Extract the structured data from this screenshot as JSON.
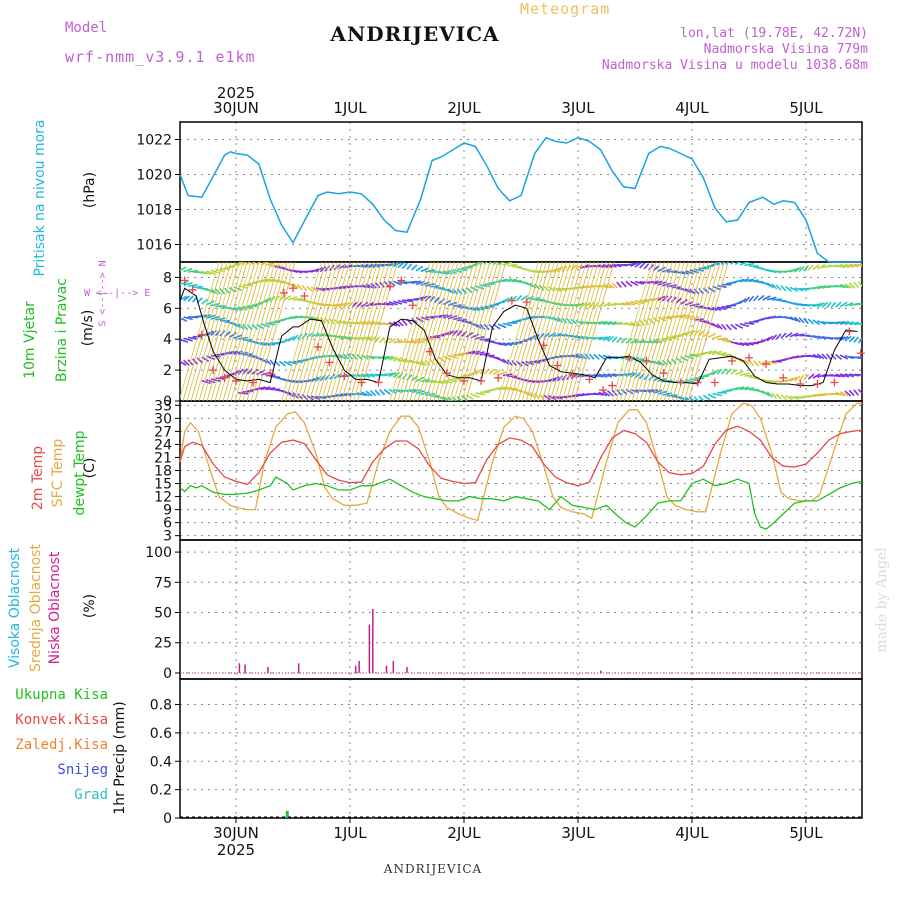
{
  "header": {
    "model_label": "Model",
    "model_name": "wrf-nmm_v3.9.1 e1km",
    "title": "ANDRIJEVICA",
    "kind": "Meteogram",
    "coords": "lon,lat (19.78E, 42.72N)",
    "elevation": "Nadmorska Visina 779m",
    "model_elevation": "Nadmorska Visina u modelu 1038.68m"
  },
  "footer": {
    "station": "ANDRIJEVICA",
    "credit": "made by Angel"
  },
  "x_axis": {
    "year": "2025",
    "days": [
      "30JUN",
      "1JUL",
      "2JUL",
      "3JUL",
      "4JUL",
      "5JUL"
    ]
  },
  "labels": {
    "pressure": {
      "name": "Pritisak na nivou mora",
      "unit": "(hPa)"
    },
    "wind": {
      "name1": "10m Vjetar",
      "name2": "Brzina i Pravac",
      "unit": "(m/s)",
      "compass_we": "W <--|--> E",
      "compass_ns": "S <--|--> N"
    },
    "temp": {
      "t2m": "2m Temp",
      "sfc": "SFC Temp",
      "dew": "dewpt Temp",
      "unit": "(C)"
    },
    "cloud": {
      "high": "Visoka Oblacnost",
      "mid": "Srednja Oblacnost",
      "low": "Niska Oblacnost",
      "unit": "(%)"
    },
    "precip": {
      "total": "Ukupna Kisa",
      "conv": "Konvek.Kisa",
      "frozen": "Zaledj.Kisa",
      "snow": "Snijeg",
      "hail": "Grad",
      "unit": "1hr Precip (mm)"
    }
  },
  "colors": {
    "pressure": "#1aa3e0",
    "t2m": "#e84848",
    "sfc": "#e8a840",
    "dew": "#20c020",
    "cloud_low": "#c0208a",
    "wind_obs": "#e84848",
    "wind_line": "#000000",
    "precip": "#20c040",
    "grid": "#888888",
    "label_magenta": "#d02090",
    "label_orange": "#e8a840",
    "label_cyan": "#20b8e0",
    "label_green": "#20c020",
    "label_red": "#e84848",
    "label_orange2": "#f08030",
    "label_blue": "#3a50e0",
    "label_teal": "#30c0c0"
  },
  "chart_data": [
    {
      "type": "line",
      "name": "pressure",
      "x_unit": "days since 30JUN 00h",
      "yticks": [
        1016,
        1018,
        1020,
        1022
      ],
      "ylim": [
        1015.0,
        1023.0
      ],
      "series": [
        {
          "name": "Pritisak na nivou mora",
          "x": [
            -0.5,
            -0.42,
            -0.3,
            -0.2,
            -0.1,
            -0.05,
            0.0,
            0.1,
            0.2,
            0.3,
            0.4,
            0.5,
            0.62,
            0.72,
            0.8,
            0.9,
            1.0,
            1.1,
            1.2,
            1.3,
            1.4,
            1.5,
            1.62,
            1.72,
            1.8,
            1.9,
            2.0,
            2.1,
            2.2,
            2.3,
            2.4,
            2.5,
            2.62,
            2.72,
            2.8,
            2.9,
            3.0,
            3.1,
            3.2,
            3.3,
            3.4,
            3.5,
            3.62,
            3.72,
            3.8,
            3.9,
            4.0,
            4.1,
            4.2,
            4.3,
            4.4,
            4.5,
            4.62,
            4.72,
            4.8,
            4.9,
            5.0,
            5.1,
            5.2,
            5.3,
            5.4,
            5.5
          ],
          "values": [
            1020.0,
            1018.8,
            1018.7,
            1019.9,
            1021.1,
            1021.3,
            1021.2,
            1021.1,
            1020.6,
            1018.6,
            1017.1,
            1016.1,
            1017.6,
            1018.8,
            1019.0,
            1018.9,
            1019.0,
            1018.9,
            1018.3,
            1017.4,
            1016.8,
            1016.7,
            1018.6,
            1020.8,
            1021.0,
            1021.4,
            1021.8,
            1021.6,
            1020.5,
            1019.2,
            1018.5,
            1018.8,
            1021.2,
            1022.1,
            1021.9,
            1021.8,
            1022.1,
            1021.9,
            1021.4,
            1020.2,
            1019.3,
            1019.2,
            1021.2,
            1021.6,
            1021.5,
            1021.2,
            1020.9,
            1019.8,
            1018.1,
            1017.3,
            1017.4,
            1018.4,
            1018.7,
            1018.3,
            1018.5,
            1018.4,
            1017.4,
            1015.5,
            1015.0,
            1014.5,
            1014.2,
            1014.0
          ]
        }
      ]
    },
    {
      "type": "scatter",
      "name": "wind",
      "yticks": [
        0,
        2,
        4,
        6,
        8
      ],
      "ylim": [
        0,
        9
      ],
      "series": [
        {
          "name": "speed_line",
          "x": [
            -0.5,
            -0.45,
            -0.35,
            -0.28,
            -0.2,
            -0.1,
            0.0,
            0.1,
            0.2,
            0.3,
            0.4,
            0.5,
            0.55,
            0.65,
            0.75,
            0.85,
            0.95,
            1.05,
            1.15,
            1.25,
            1.35,
            1.45,
            1.55,
            1.65,
            1.75,
            1.85,
            1.95,
            2.05,
            2.15,
            2.25,
            2.35,
            2.45,
            2.55,
            2.65,
            2.75,
            2.85,
            2.95,
            3.05,
            3.15,
            3.25,
            3.35,
            3.45,
            3.55,
            3.65,
            3.75,
            3.85,
            3.95,
            4.05,
            4.15,
            4.25,
            4.35,
            4.45,
            4.55,
            4.65,
            4.75,
            4.85,
            4.95,
            5.05,
            5.15,
            5.25,
            5.35,
            5.45
          ],
          "values": [
            6.5,
            7.3,
            6.8,
            5.0,
            3.2,
            2.0,
            1.4,
            1.3,
            1.4,
            1.2,
            4.2,
            4.8,
            4.8,
            5.3,
            5.2,
            3.4,
            2.0,
            1.4,
            1.4,
            1.2,
            4.8,
            5.3,
            5.2,
            4.6,
            2.7,
            1.7,
            1.5,
            1.5,
            1.3,
            4.8,
            5.8,
            6.2,
            6.0,
            4.0,
            2.3,
            1.9,
            1.8,
            1.7,
            1.5,
            2.8,
            2.8,
            2.9,
            2.5,
            1.7,
            1.3,
            1.2,
            1.2,
            1.1,
            2.7,
            2.8,
            2.9,
            2.6,
            1.6,
            1.2,
            1.1,
            1.1,
            1.0,
            1.0,
            1.2,
            3.3,
            4.6,
            4.5
          ]
        },
        {
          "name": "obs_marks",
          "x": [
            -0.45,
            -0.38,
            -0.3,
            -0.2,
            -0.1,
            0.0,
            0.15,
            0.3,
            0.42,
            0.5,
            0.6,
            0.72,
            0.82,
            0.95,
            1.1,
            1.25,
            1.35,
            1.45,
            1.55,
            1.7,
            1.85,
            2.0,
            2.15,
            2.3,
            2.42,
            2.55,
            2.7,
            2.82,
            2.95,
            3.1,
            3.22,
            3.3,
            3.45,
            3.6,
            3.75,
            3.9,
            4.05,
            4.2,
            4.35,
            4.5,
            4.65,
            4.8,
            4.95,
            5.1,
            5.25,
            5.38,
            5.48
          ],
          "values": [
            7.8,
            7.2,
            4.3,
            2.0,
            1.5,
            1.3,
            1.2,
            1.8,
            7.0,
            7.3,
            6.8,
            3.5,
            2.5,
            1.6,
            1.2,
            1.2,
            7.4,
            7.8,
            6.2,
            3.2,
            1.8,
            1.3,
            1.3,
            1.5,
            6.5,
            6.4,
            3.6,
            2.3,
            1.7,
            1.4,
            0.7,
            1.0,
            2.8,
            2.6,
            1.8,
            1.2,
            1.2,
            1.2,
            2.6,
            2.8,
            2.4,
            1.5,
            1.1,
            1.1,
            1.2,
            4.5,
            3.1
          ]
        }
      ]
    },
    {
      "type": "line",
      "name": "temperature",
      "yticks": [
        3,
        6,
        9,
        12,
        15,
        18,
        21,
        24,
        27,
        30,
        33
      ],
      "ylim": [
        2,
        34
      ],
      "series": [
        {
          "name": "2m Temp",
          "x": [
            -0.5,
            -0.45,
            -0.38,
            -0.3,
            -0.2,
            -0.1,
            0.0,
            0.1,
            0.2,
            0.3,
            0.4,
            0.5,
            0.6,
            0.7,
            0.8,
            0.9,
            1.0,
            1.1,
            1.2,
            1.3,
            1.4,
            1.5,
            1.6,
            1.7,
            1.8,
            1.9,
            2.0,
            2.1,
            2.2,
            2.3,
            2.4,
            2.5,
            2.6,
            2.7,
            2.8,
            2.9,
            3.0,
            3.1,
            3.2,
            3.3,
            3.4,
            3.5,
            3.6,
            3.7,
            3.8,
            3.9,
            4.0,
            4.1,
            4.2,
            4.3,
            4.4,
            4.5,
            4.6,
            4.7,
            4.8,
            4.9,
            5.0,
            5.1,
            5.2,
            5.3,
            5.4,
            5.5
          ],
          "values": [
            20.0,
            23.5,
            24.5,
            23.8,
            19.5,
            16.5,
            15.5,
            14.8,
            17.5,
            22.0,
            24.5,
            25.0,
            24.2,
            20.5,
            17.0,
            15.8,
            15.2,
            15.3,
            20.0,
            23.0,
            24.8,
            24.8,
            23.0,
            19.0,
            16.2,
            15.5,
            15.0,
            15.2,
            20.5,
            24.0,
            25.5,
            25.0,
            23.5,
            19.5,
            16.5,
            15.2,
            14.5,
            15.3,
            21.0,
            25.5,
            27.2,
            26.5,
            24.5,
            20.0,
            17.5,
            17.0,
            17.3,
            19.0,
            24.0,
            27.3,
            28.2,
            27.0,
            25.0,
            21.0,
            19.0,
            18.8,
            19.5,
            22.0,
            25.0,
            26.5,
            27.0,
            27.3
          ]
        },
        {
          "name": "SFC Temp",
          "x": [
            -0.5,
            -0.45,
            -0.4,
            -0.33,
            -0.25,
            -0.15,
            -0.05,
            0.0,
            0.1,
            0.17,
            0.25,
            0.35,
            0.45,
            0.52,
            0.6,
            0.7,
            0.78,
            0.85,
            0.95,
            1.05,
            1.15,
            1.25,
            1.35,
            1.45,
            1.52,
            1.6,
            1.7,
            1.78,
            1.85,
            1.95,
            2.05,
            2.12,
            2.25,
            2.35,
            2.45,
            2.52,
            2.6,
            2.7,
            2.78,
            2.85,
            2.95,
            3.05,
            3.12,
            3.25,
            3.35,
            3.45,
            3.52,
            3.6,
            3.7,
            3.78,
            3.85,
            3.95,
            4.05,
            4.12,
            4.25,
            4.35,
            4.45,
            4.52,
            4.6,
            4.7,
            4.78,
            4.85,
            4.95,
            5.05,
            5.12,
            5.25,
            5.35,
            5.45,
            5.5
          ],
          "values": [
            20.0,
            27.0,
            29.0,
            27.0,
            20.0,
            12.0,
            10.0,
            9.5,
            9.0,
            9.0,
            20.0,
            28.0,
            31.0,
            31.5,
            29.0,
            22.0,
            14.0,
            11.5,
            10.0,
            10.0,
            10.5,
            20.0,
            27.0,
            30.5,
            30.5,
            28.0,
            20.0,
            12.0,
            9.5,
            8.0,
            7.0,
            6.5,
            20.0,
            28.0,
            30.5,
            30.0,
            27.0,
            19.0,
            12.0,
            9.5,
            8.5,
            8.0,
            7.0,
            20.0,
            29.0,
            32.0,
            32.0,
            29.0,
            20.0,
            12.0,
            10.0,
            9.0,
            8.5,
            8.5,
            22.0,
            31.0,
            33.5,
            33.0,
            30.0,
            22.0,
            13.0,
            11.5,
            11.0,
            11.0,
            12.5,
            23.0,
            31.0,
            33.5,
            33.5
          ]
        },
        {
          "name": "dewpt Temp",
          "x": [
            -0.5,
            -0.45,
            -0.4,
            -0.35,
            -0.3,
            -0.2,
            -0.1,
            0.0,
            0.1,
            0.2,
            0.3,
            0.35,
            0.45,
            0.5,
            0.6,
            0.7,
            0.8,
            0.9,
            1.0,
            1.1,
            1.2,
            1.3,
            1.35,
            1.45,
            1.55,
            1.65,
            1.75,
            1.85,
            1.95,
            2.05,
            2.15,
            2.25,
            2.35,
            2.45,
            2.55,
            2.65,
            2.75,
            2.85,
            2.95,
            3.05,
            3.15,
            3.25,
            3.35,
            3.42,
            3.5,
            3.6,
            3.7,
            3.8,
            3.9,
            4.0,
            4.1,
            4.2,
            4.3,
            4.4,
            4.5,
            4.55,
            4.6,
            4.65,
            4.72,
            4.8,
            4.9,
            5.0,
            5.1,
            5.2,
            5.3,
            5.4,
            5.5
          ],
          "values": [
            14.0,
            13.2,
            14.5,
            14.0,
            14.5,
            13.0,
            12.5,
            12.5,
            12.8,
            13.5,
            14.5,
            16.5,
            15.0,
            13.5,
            14.5,
            15.0,
            14.5,
            13.5,
            13.5,
            14.5,
            14.5,
            15.5,
            16.0,
            14.5,
            13.0,
            12.0,
            11.5,
            11.0,
            11.0,
            12.0,
            11.5,
            11.5,
            11.0,
            12.0,
            11.5,
            11.0,
            9.0,
            12.0,
            10.0,
            9.5,
            9.0,
            10.0,
            7.5,
            6.0,
            5.0,
            7.5,
            10.5,
            11.0,
            11.0,
            15.0,
            16.0,
            14.5,
            15.0,
            16.0,
            15.0,
            8.0,
            5.0,
            4.5,
            6.0,
            8.0,
            10.5,
            11.0,
            11.0,
            12.5,
            14.0,
            15.0,
            15.5
          ]
        }
      ]
    },
    {
      "type": "bar",
      "name": "cloud",
      "yticks": [
        0,
        25,
        50,
        75,
        100
      ],
      "ylim": [
        -5,
        110
      ],
      "series": [
        {
          "name": "Niska Oblacnost",
          "x": [
            0.03,
            0.08,
            0.28,
            0.55,
            1.05,
            1.08,
            1.17,
            1.2,
            1.32,
            1.38,
            1.5,
            3.2
          ],
          "values": [
            8,
            7,
            5,
            8,
            6,
            10,
            40,
            53,
            6,
            10,
            5,
            2
          ]
        }
      ]
    },
    {
      "type": "bar",
      "name": "precipitation",
      "yticks": [
        0,
        0.2,
        0.4,
        0.6,
        0.8
      ],
      "ylim": [
        0,
        0.98
      ],
      "series": [
        {
          "name": "Ukupna Kisa",
          "x": [
            0.45,
            1.2
          ],
          "values": [
            0.05,
            0.01
          ]
        }
      ]
    }
  ]
}
